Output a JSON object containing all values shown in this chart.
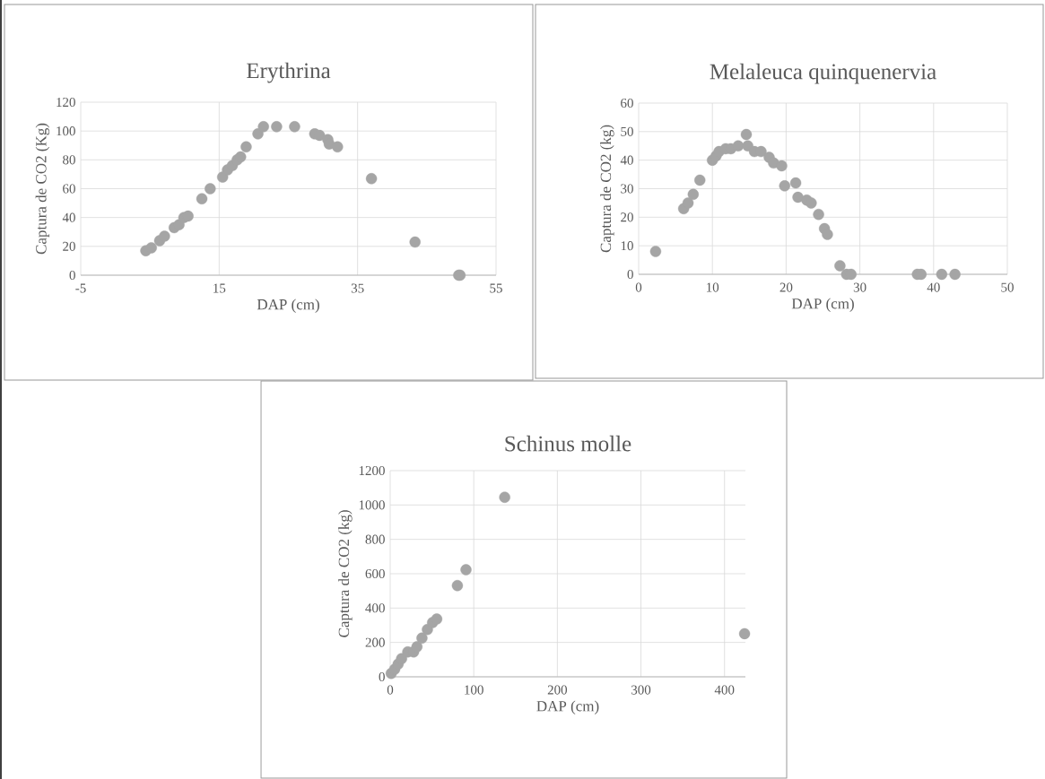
{
  "chart_data": [
    {
      "type": "scatter",
      "title": "Erythrina",
      "xlabel": "DAP (cm)",
      "ylabel": "Captura de CO2 (Kg)",
      "color": "#a5a5a5",
      "marker": "circle",
      "grid": true,
      "x": [
        4.4,
        5.2,
        6.4,
        7.1,
        8.5,
        9.2,
        9.9,
        10.5,
        12.5,
        13.7,
        15.5,
        16.2,
        16.9,
        17.6,
        18.1,
        18.9,
        20.6,
        21.4,
        23.3,
        25.9,
        28.8,
        29.5,
        30.7,
        30.9,
        32.1,
        37,
        43.3,
        49.6,
        49.8
      ],
      "values": [
        17,
        19,
        24,
        27,
        33,
        35,
        40,
        41,
        53,
        60,
        68,
        73,
        76,
        80,
        82,
        89,
        98,
        103,
        103,
        103,
        98,
        97,
        94,
        91,
        89,
        67,
        23,
        0,
        0
      ],
      "xlim": [
        -5,
        55
      ],
      "ylim": [
        0,
        120
      ],
      "xticks": [
        -5,
        15,
        35,
        55
      ],
      "yticks": [
        0,
        20,
        40,
        60,
        80,
        100,
        120
      ]
    },
    {
      "type": "scatter",
      "title": "Melaleuca quinquenervia",
      "xlabel": "DAP (cm)",
      "ylabel": "Captura de CO2 (kg)",
      "color": "#a5a5a5",
      "marker": "circle",
      "grid": true,
      "x": [
        2.3,
        6.1,
        6.7,
        7.4,
        8.3,
        10,
        10.5,
        10.9,
        11.8,
        12.5,
        13.5,
        14.6,
        14.8,
        15.7,
        16.6,
        17.7,
        18.3,
        19.4,
        19.8,
        21.3,
        21.6,
        22.8,
        23.4,
        24.1,
        24.4,
        25.2,
        25.6,
        27.3,
        28.2,
        28.8,
        37.8,
        38.3,
        41.1,
        42.9
      ],
      "values": [
        8,
        23,
        25,
        28,
        33,
        40,
        41.5,
        43,
        44,
        44,
        45,
        49,
        45,
        43,
        43,
        41,
        39,
        38,
        31,
        32,
        27,
        26,
        25,
        null,
        21,
        16,
        14,
        3,
        0,
        0,
        0,
        0,
        0,
        0
      ],
      "xlim": [
        0,
        50
      ],
      "ylim": [
        0,
        60
      ],
      "xticks": [
        0,
        10,
        20,
        30,
        40,
        50
      ],
      "yticks": [
        0,
        10,
        20,
        30,
        40,
        50,
        60
      ]
    },
    {
      "type": "scatter",
      "title": "Schinus molle",
      "xlabel": "DAP (cm)",
      "ylabel": "Captura de CO2 (kg)",
      "color": "#a5a5a5",
      "marker": "circle",
      "grid": true,
      "x": [
        1.2,
        5.4,
        9.5,
        13.6,
        17.7,
        21,
        28,
        32,
        38,
        44.5,
        50.7,
        55.7,
        80.4,
        90.7,
        137,
        424
      ],
      "values": [
        20,
        44,
        74,
        105,
        null,
        145,
        145,
        175,
        225,
        275,
        316,
        336,
        531,
        623,
        1045,
        251
      ],
      "xlim": [
        0,
        425
      ],
      "ylim": [
        0,
        1200
      ],
      "xticks": [
        0,
        100,
        200,
        300,
        400
      ],
      "yticks": [
        0,
        200,
        400,
        600,
        800,
        1000,
        1200
      ]
    }
  ]
}
